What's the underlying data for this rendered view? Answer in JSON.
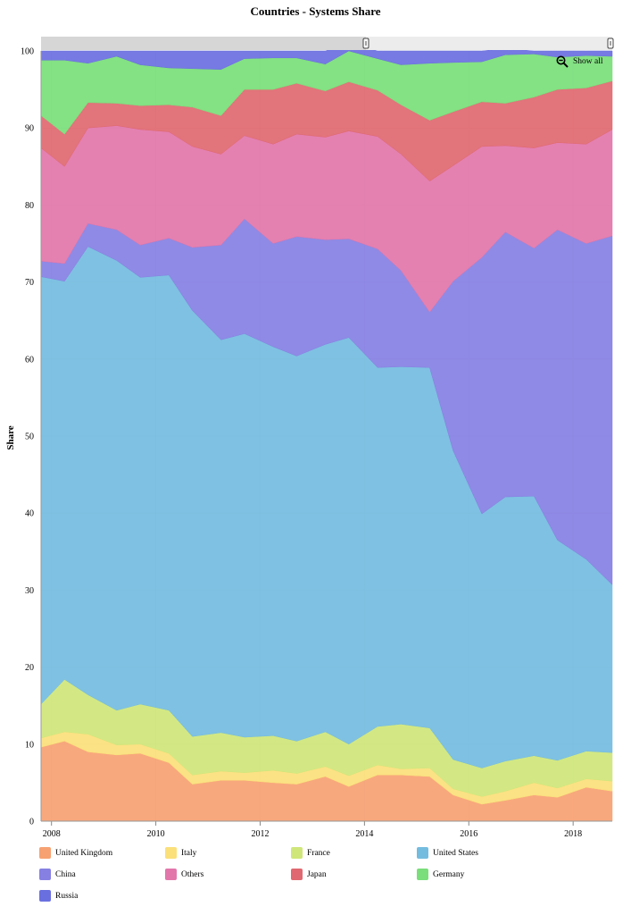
{
  "chart_data": {
    "type": "area",
    "stacked": true,
    "title": "Countries - Systems Share",
    "xlabel": "",
    "ylabel": "Share",
    "xlim": [
      2007.8,
      2018.75
    ],
    "ylim": [
      0,
      100
    ],
    "x_ticks": [
      "2008",
      "2010",
      "2012",
      "2014",
      "2016",
      "2018"
    ],
    "y_ticks": [
      "0",
      "10",
      "20",
      "30",
      "40",
      "50",
      "60",
      "70",
      "80",
      "90",
      "100"
    ],
    "grid": true,
    "legend_position": "bottom",
    "show_all_label": "Show all",
    "x": [
      2007.8,
      2008.25,
      2008.7,
      2009.25,
      2009.7,
      2010.25,
      2010.7,
      2011.25,
      2011.7,
      2012.25,
      2012.7,
      2013.25,
      2013.7,
      2014.25,
      2014.7,
      2015.25,
      2015.7,
      2016.25,
      2016.7,
      2017.25,
      2017.7,
      2018.25,
      2018.75
    ],
    "series": [
      {
        "name": "United Kingdom",
        "color": "#f7a172",
        "values": [
          9.6,
          10.4,
          9.0,
          8.6,
          8.8,
          7.6,
          4.8,
          5.3,
          5.3,
          5.0,
          4.8,
          5.8,
          4.5,
          6.0,
          6.0,
          5.8,
          3.4,
          2.2,
          2.7,
          3.4,
          3.1,
          4.4,
          3.9
        ]
      },
      {
        "name": "Italy",
        "color": "#fbe07a",
        "values": [
          1.2,
          1.2,
          2.3,
          1.3,
          1.2,
          1.2,
          1.2,
          1.2,
          1.0,
          1.6,
          1.4,
          1.3,
          1.4,
          1.3,
          0.8,
          1.1,
          0.8,
          1.0,
          1.2,
          1.6,
          1.2,
          1.1,
          1.3
        ]
      },
      {
        "name": "France",
        "color": "#cfe67a",
        "values": [
          4.4,
          6.8,
          5.1,
          4.5,
          5.2,
          5.6,
          5.0,
          5.0,
          4.6,
          4.5,
          4.2,
          4.5,
          4.1,
          5.0,
          5.8,
          5.2,
          3.8,
          3.7,
          3.9,
          3.5,
          3.6,
          3.6,
          3.7
        ]
      },
      {
        "name": "United States",
        "color": "#74bcdf",
        "values": [
          55.5,
          51.7,
          58.2,
          58.4,
          55.4,
          56.5,
          55.3,
          51.0,
          52.4,
          50.5,
          50.0,
          50.3,
          52.8,
          46.6,
          46.4,
          46.8,
          40.1,
          33.0,
          34.3,
          33.7,
          28.6,
          24.9,
          21.8
        ]
      },
      {
        "name": "China",
        "color": "#8680e3",
        "values": [
          2.0,
          2.3,
          3.0,
          4.0,
          4.2,
          4.8,
          8.2,
          12.3,
          14.9,
          13.4,
          15.5,
          13.6,
          12.8,
          15.4,
          12.5,
          7.2,
          22.0,
          33.3,
          34.4,
          32.2,
          40.3,
          41.0,
          45.3
        ]
      },
      {
        "name": "Others",
        "color": "#e276aa",
        "values": [
          14.7,
          12.6,
          12.4,
          13.5,
          15.0,
          13.8,
          13.1,
          11.8,
          10.8,
          12.9,
          13.3,
          13.3,
          14.0,
          14.6,
          15.1,
          17.0,
          15.0,
          14.4,
          11.2,
          13.0,
          11.3,
          12.9,
          13.8
        ]
      },
      {
        "name": "Japan",
        "color": "#e06870",
        "values": [
          4.2,
          4.2,
          3.3,
          2.9,
          3.1,
          3.5,
          5.1,
          5.0,
          6.0,
          7.1,
          6.6,
          6.0,
          6.4,
          6.0,
          6.4,
          7.9,
          7.0,
          5.8,
          5.5,
          6.6,
          6.9,
          7.3,
          6.3
        ]
      },
      {
        "name": "Germany",
        "color": "#7ade7a",
        "values": [
          7.2,
          9.6,
          5.1,
          6.1,
          5.3,
          4.8,
          5.0,
          6.0,
          4.0,
          4.1,
          3.3,
          3.5,
          4.0,
          4.1,
          5.2,
          7.4,
          6.4,
          5.2,
          6.3,
          5.6,
          4.2,
          4.2,
          3.2
        ]
      },
      {
        "name": "Russia",
        "color": "#6a6fdf",
        "values": [
          1.2,
          1.2,
          1.6,
          0.7,
          1.8,
          2.2,
          2.3,
          2.4,
          1.0,
          0.9,
          0.9,
          1.7,
          1.0,
          1.0,
          1.8,
          1.6,
          1.5,
          1.4,
          0.8,
          0.4,
          0.8,
          0.6,
          0.7
        ]
      }
    ]
  }
}
